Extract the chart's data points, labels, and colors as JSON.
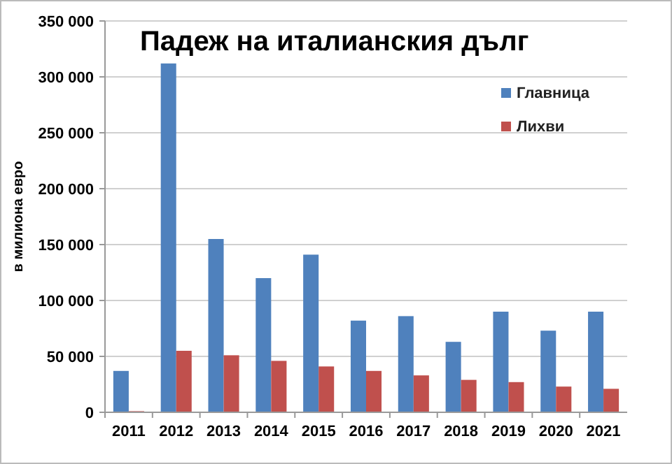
{
  "chart_data": {
    "type": "bar",
    "title": "Падеж на италианския дълг",
    "ylabel": "в милиона евро",
    "categories": [
      "2011",
      "2012",
      "2013",
      "2014",
      "2015",
      "2016",
      "2017",
      "2018",
      "2019",
      "2020",
      "2021"
    ],
    "series": [
      {
        "name": "Главница",
        "color": "#4f81bd",
        "values": [
          37000,
          312000,
          155000,
          120000,
          141000,
          82000,
          86000,
          63000,
          90000,
          73000,
          90000
        ]
      },
      {
        "name": "Лихви",
        "color": "#c0504d",
        "values": [
          1000,
          55000,
          51000,
          46000,
          41000,
          37000,
          33000,
          29000,
          27000,
          23000,
          21000
        ]
      }
    ],
    "ylim": [
      0,
      350000
    ],
    "yticks": [
      {
        "value": 0,
        "label": "0"
      },
      {
        "value": 50000,
        "label": "50 000"
      },
      {
        "value": 100000,
        "label": "100 000"
      },
      {
        "value": 150000,
        "label": "150 000"
      },
      {
        "value": 200000,
        "label": "200 000"
      },
      {
        "value": 250000,
        "label": "250 000"
      },
      {
        "value": 300000,
        "label": "300 000"
      },
      {
        "value": 350000,
        "label": "350 000"
      }
    ],
    "grid": "y",
    "legend": "top right"
  }
}
